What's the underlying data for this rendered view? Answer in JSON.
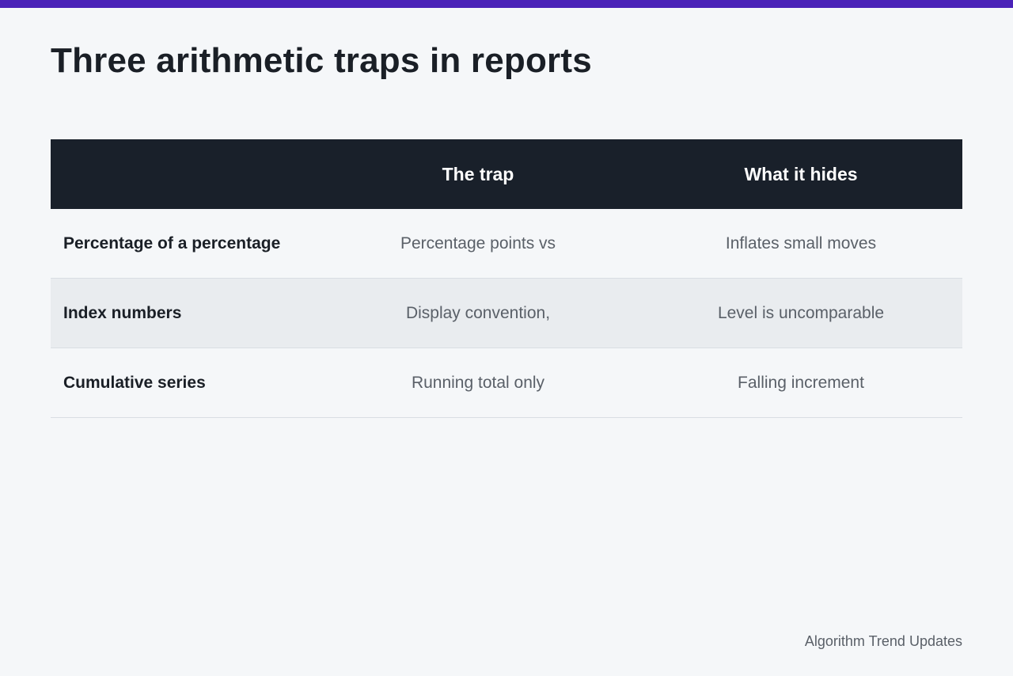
{
  "title": "Three arithmetic traps in reports",
  "table": {
    "headers": [
      "",
      "The trap",
      "What it hides"
    ],
    "rows": [
      {
        "label": "Percentage of a percentage",
        "trap": "Percentage points vs",
        "hides": "Inflates small moves"
      },
      {
        "label": "Index numbers",
        "trap": "Display convention,",
        "hides": "Level is uncomparable"
      },
      {
        "label": "Cumulative series",
        "trap": "Running total only",
        "hides": "Falling increment"
      }
    ]
  },
  "footer": "Algorithm Trend Updates",
  "colors": {
    "accent": "#4a22b8",
    "header_bg": "#19202a",
    "page_bg": "#f5f7f9",
    "alt_row": "#e9ecef"
  }
}
